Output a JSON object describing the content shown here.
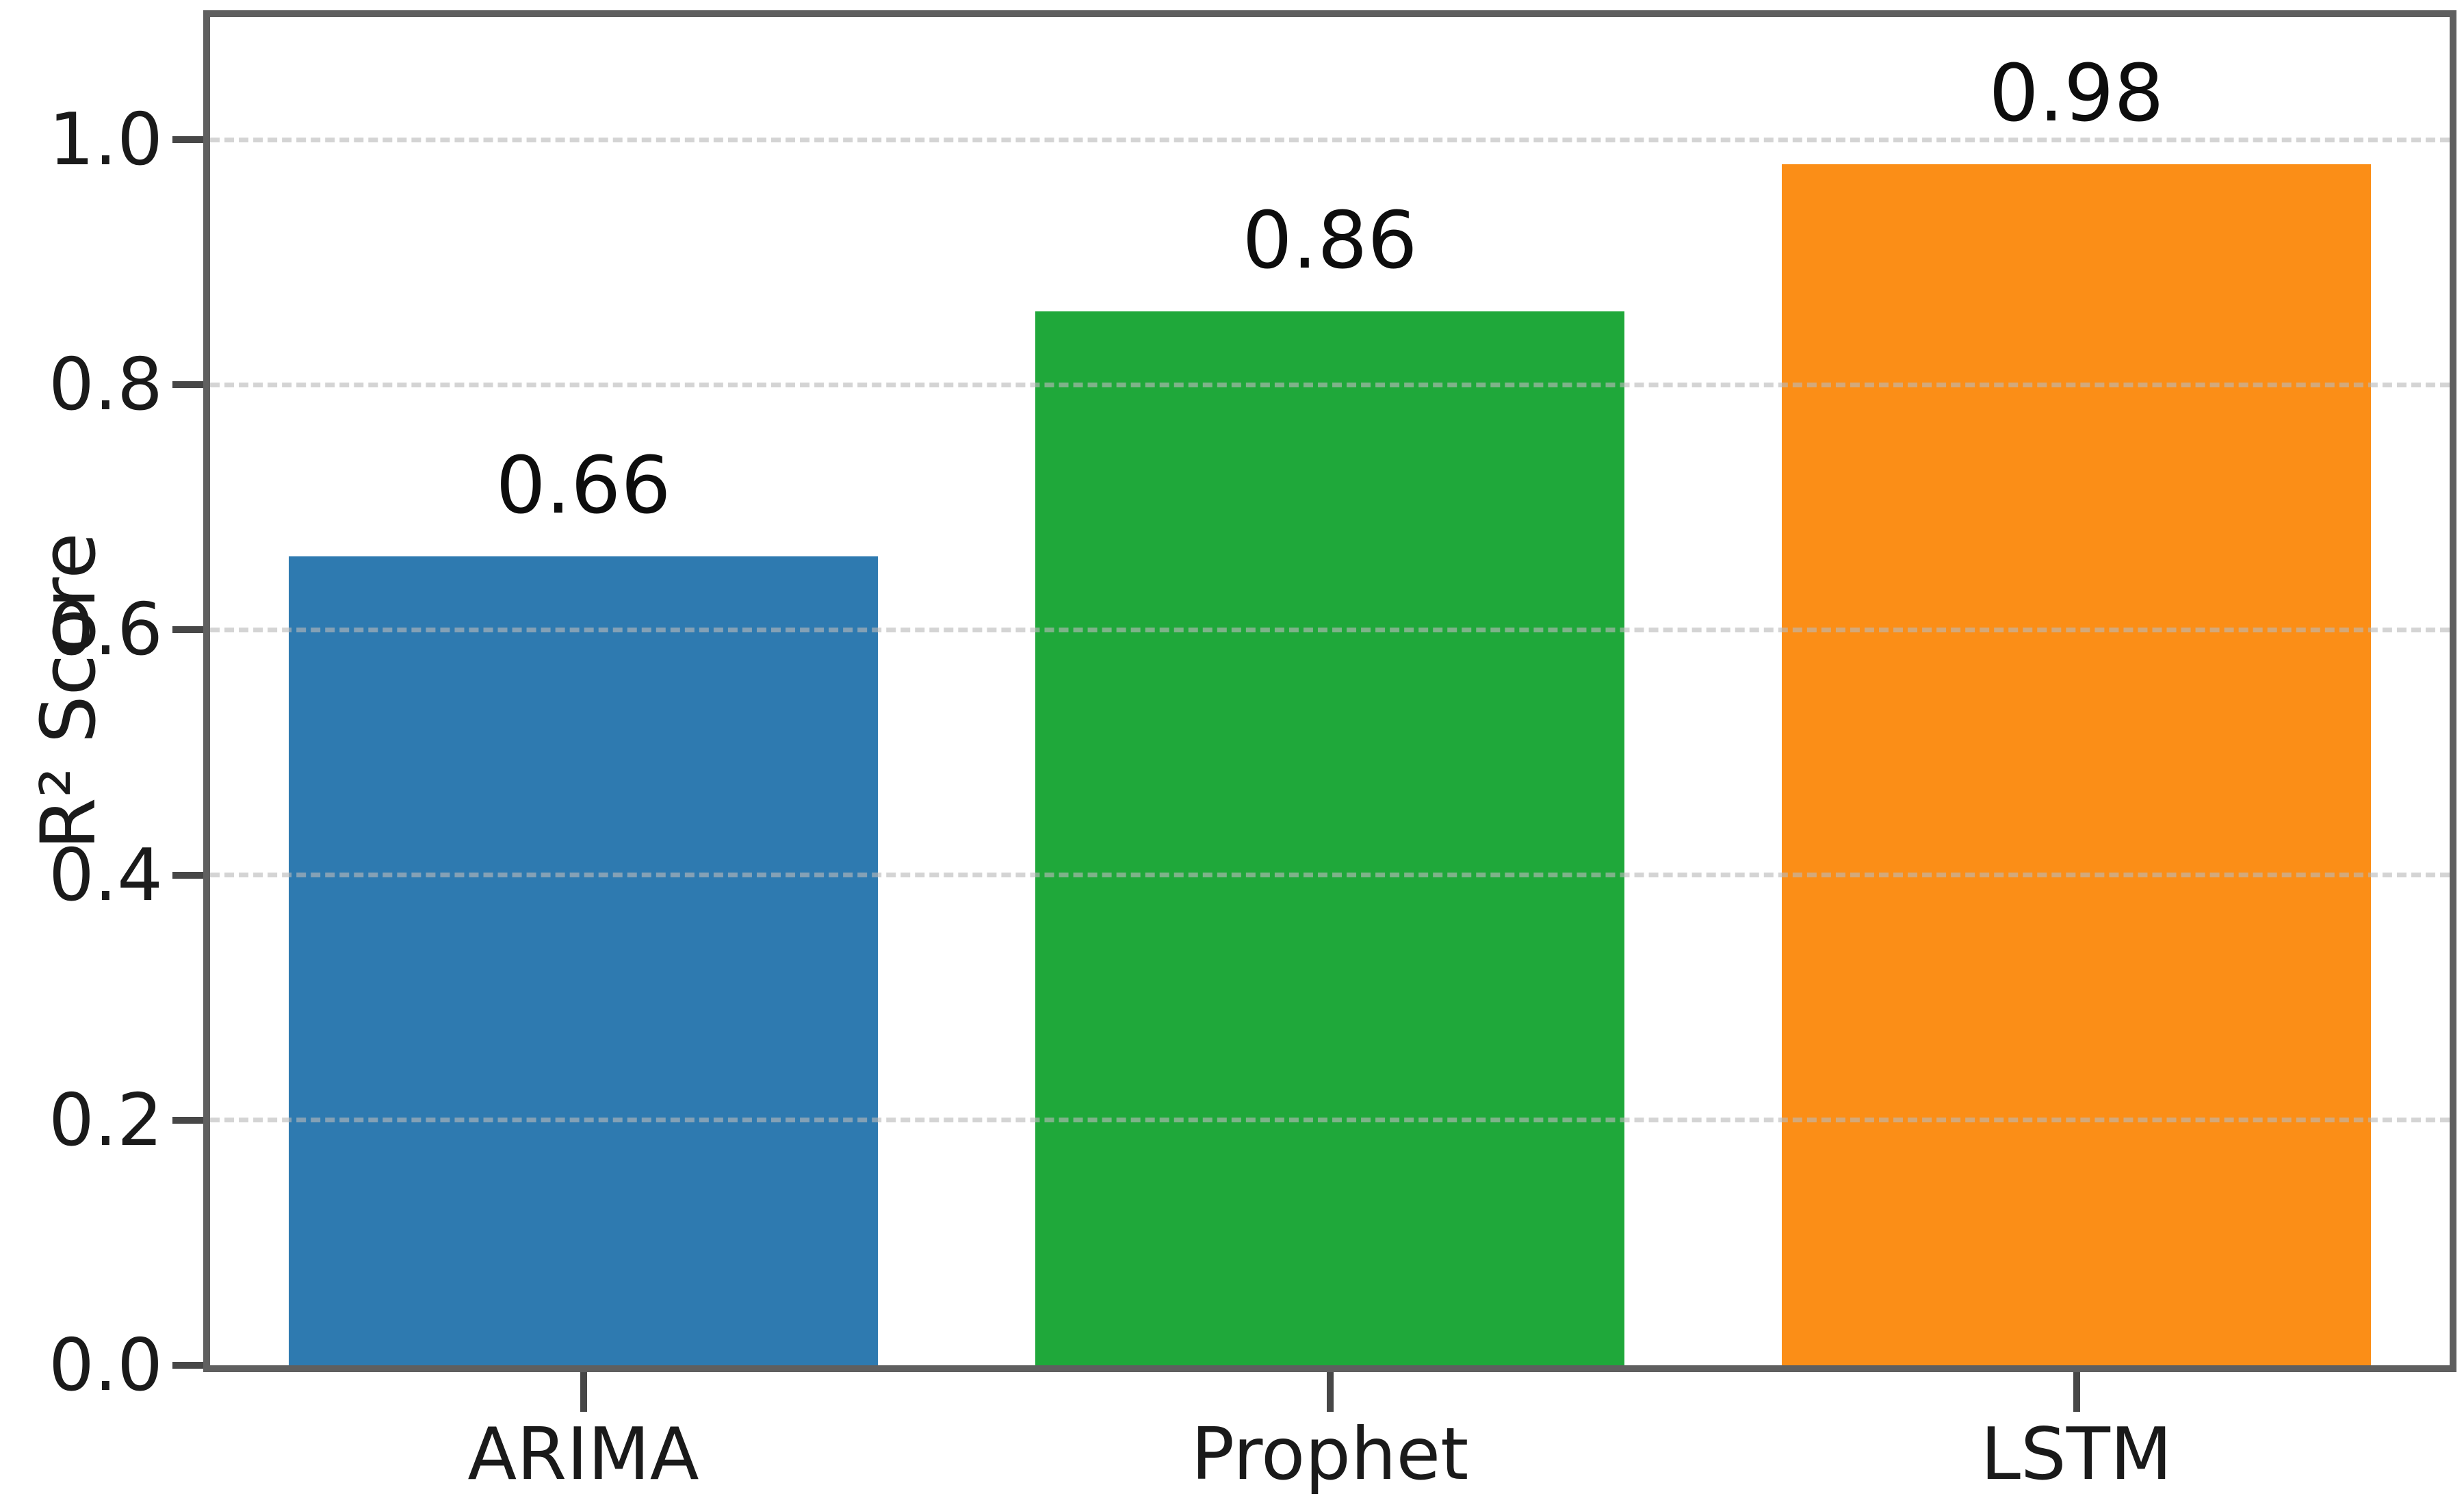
{
  "figure": {
    "background": "#ffffff",
    "spine_color": "#5f5f5f",
    "tick_color": "#474747",
    "grid_color": "rgba(186,186,186,0.62)",
    "text_color": "#1a1a1a"
  },
  "chart_data": {
    "type": "bar",
    "title": "",
    "categories": [
      "ARIMA",
      "Prophet",
      "LSTM"
    ],
    "values": [
      0.66,
      0.86,
      0.98
    ],
    "bar_labels": [
      "0.66",
      "0.86",
      "0.98"
    ],
    "bar_colors": [
      "#2e7ab0",
      "#1fa83a",
      "#fb8e17"
    ],
    "xlabel": "",
    "ylabel": "R² Score",
    "ylim": [
      0,
      1.1
    ],
    "yticks": [
      0.0,
      0.2,
      0.4,
      0.6,
      0.8,
      1.0
    ],
    "ytick_labels": [
      "0.0",
      "0.2",
      "0.4",
      "0.6",
      "0.8",
      "1.0"
    ],
    "grid": {
      "axis": "y",
      "style": "dashed",
      "visible": true
    },
    "legend": "none",
    "bar_width_fraction": 0.79
  }
}
